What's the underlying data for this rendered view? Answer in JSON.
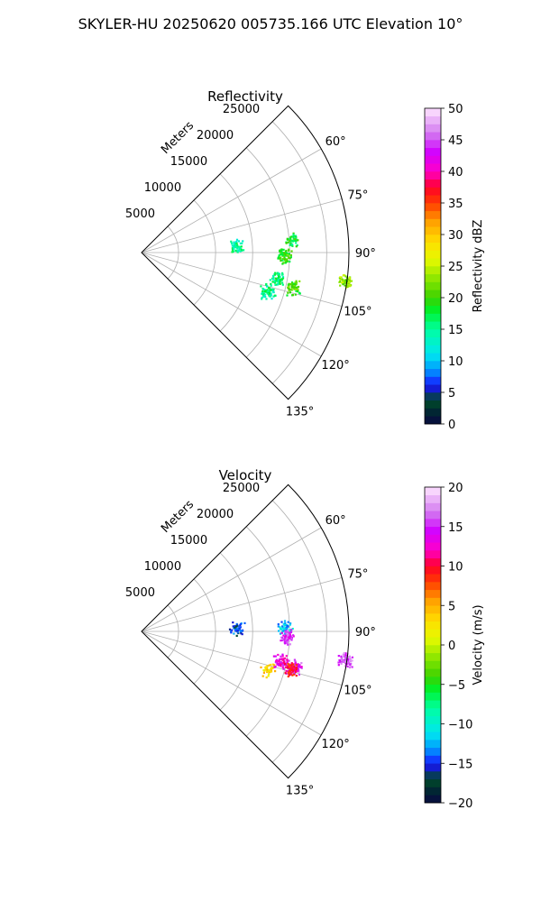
{
  "suptitle": "SKYLER-HU  20250620  005735.166 UTC Elevation 10°",
  "chart_data": [
    {
      "type": "heatmap",
      "projection": "polar-sector",
      "title": "Reflectivity",
      "range_label": "Meters",
      "theta_range_deg": [
        45,
        135
      ],
      "r_max": 28000,
      "range_ticks": [
        5000,
        10000,
        15000,
        20000,
        25000
      ],
      "range_tick_labels": [
        "5000",
        "10000",
        "15000",
        "20000",
        "25000"
      ],
      "theta_ticks": [
        60,
        75,
        90,
        105,
        120,
        135
      ],
      "theta_tick_labels": [
        "60°",
        "75°",
        "90°",
        "105°",
        "120°",
        "135°"
      ],
      "grid": true,
      "colorbar": {
        "label": "Reflectivity dBZ",
        "range": [
          0,
          50
        ],
        "ticks": [
          0,
          5,
          10,
          15,
          20,
          25,
          30,
          35,
          40,
          45,
          50
        ],
        "tick_labels": [
          "0",
          "5",
          "10",
          "15",
          "20",
          "25",
          "30",
          "35",
          "40",
          "45",
          "50"
        ]
      },
      "echoes": [
        {
          "az": 86,
          "r": 12800,
          "value": 15
        },
        {
          "az": 91,
          "r": 19200,
          "value": 20
        },
        {
          "az": 85,
          "r": 20300,
          "value": 18
        },
        {
          "az": 98,
          "r": 27700,
          "value": 23
        },
        {
          "az": 103,
          "r": 21000,
          "value": 20
        },
        {
          "az": 101,
          "r": 18600,
          "value": 16
        },
        {
          "az": 107,
          "r": 17800,
          "value": 15
        }
      ]
    },
    {
      "type": "heatmap",
      "projection": "polar-sector",
      "title": "Velocity",
      "range_label": "Meters",
      "theta_range_deg": [
        45,
        135
      ],
      "r_max": 28000,
      "range_ticks": [
        5000,
        10000,
        15000,
        20000,
        25000
      ],
      "range_tick_labels": [
        "5000",
        "10000",
        "15000",
        "20000",
        "25000"
      ],
      "theta_ticks": [
        60,
        75,
        90,
        105,
        120,
        135
      ],
      "theta_tick_labels": [
        "60°",
        "75°",
        "90°",
        "105°",
        "120°",
        "135°"
      ],
      "grid": true,
      "colorbar": {
        "label": "Velocity (m/s)",
        "range": [
          -20,
          20
        ],
        "ticks": [
          -20,
          -15,
          -10,
          -5,
          0,
          5,
          10,
          15,
          20
        ],
        "tick_labels": [
          "−20",
          "−15",
          "−10",
          "−5",
          "0",
          "5",
          "10",
          "15",
          "20"
        ]
      },
      "echoes": [
        {
          "az": 88,
          "r": 12800,
          "value": -15
        },
        {
          "az": 88,
          "r": 19300,
          "value": -12
        },
        {
          "az": 92,
          "r": 19600,
          "value": 15
        },
        {
          "az": 98,
          "r": 27700,
          "value": 16
        },
        {
          "az": 103,
          "r": 21000,
          "value": 15
        },
        {
          "az": 102,
          "r": 19200,
          "value": 13
        },
        {
          "az": 104,
          "r": 20700,
          "value": 10
        },
        {
          "az": 107,
          "r": 17800,
          "value": 3
        }
      ]
    }
  ]
}
